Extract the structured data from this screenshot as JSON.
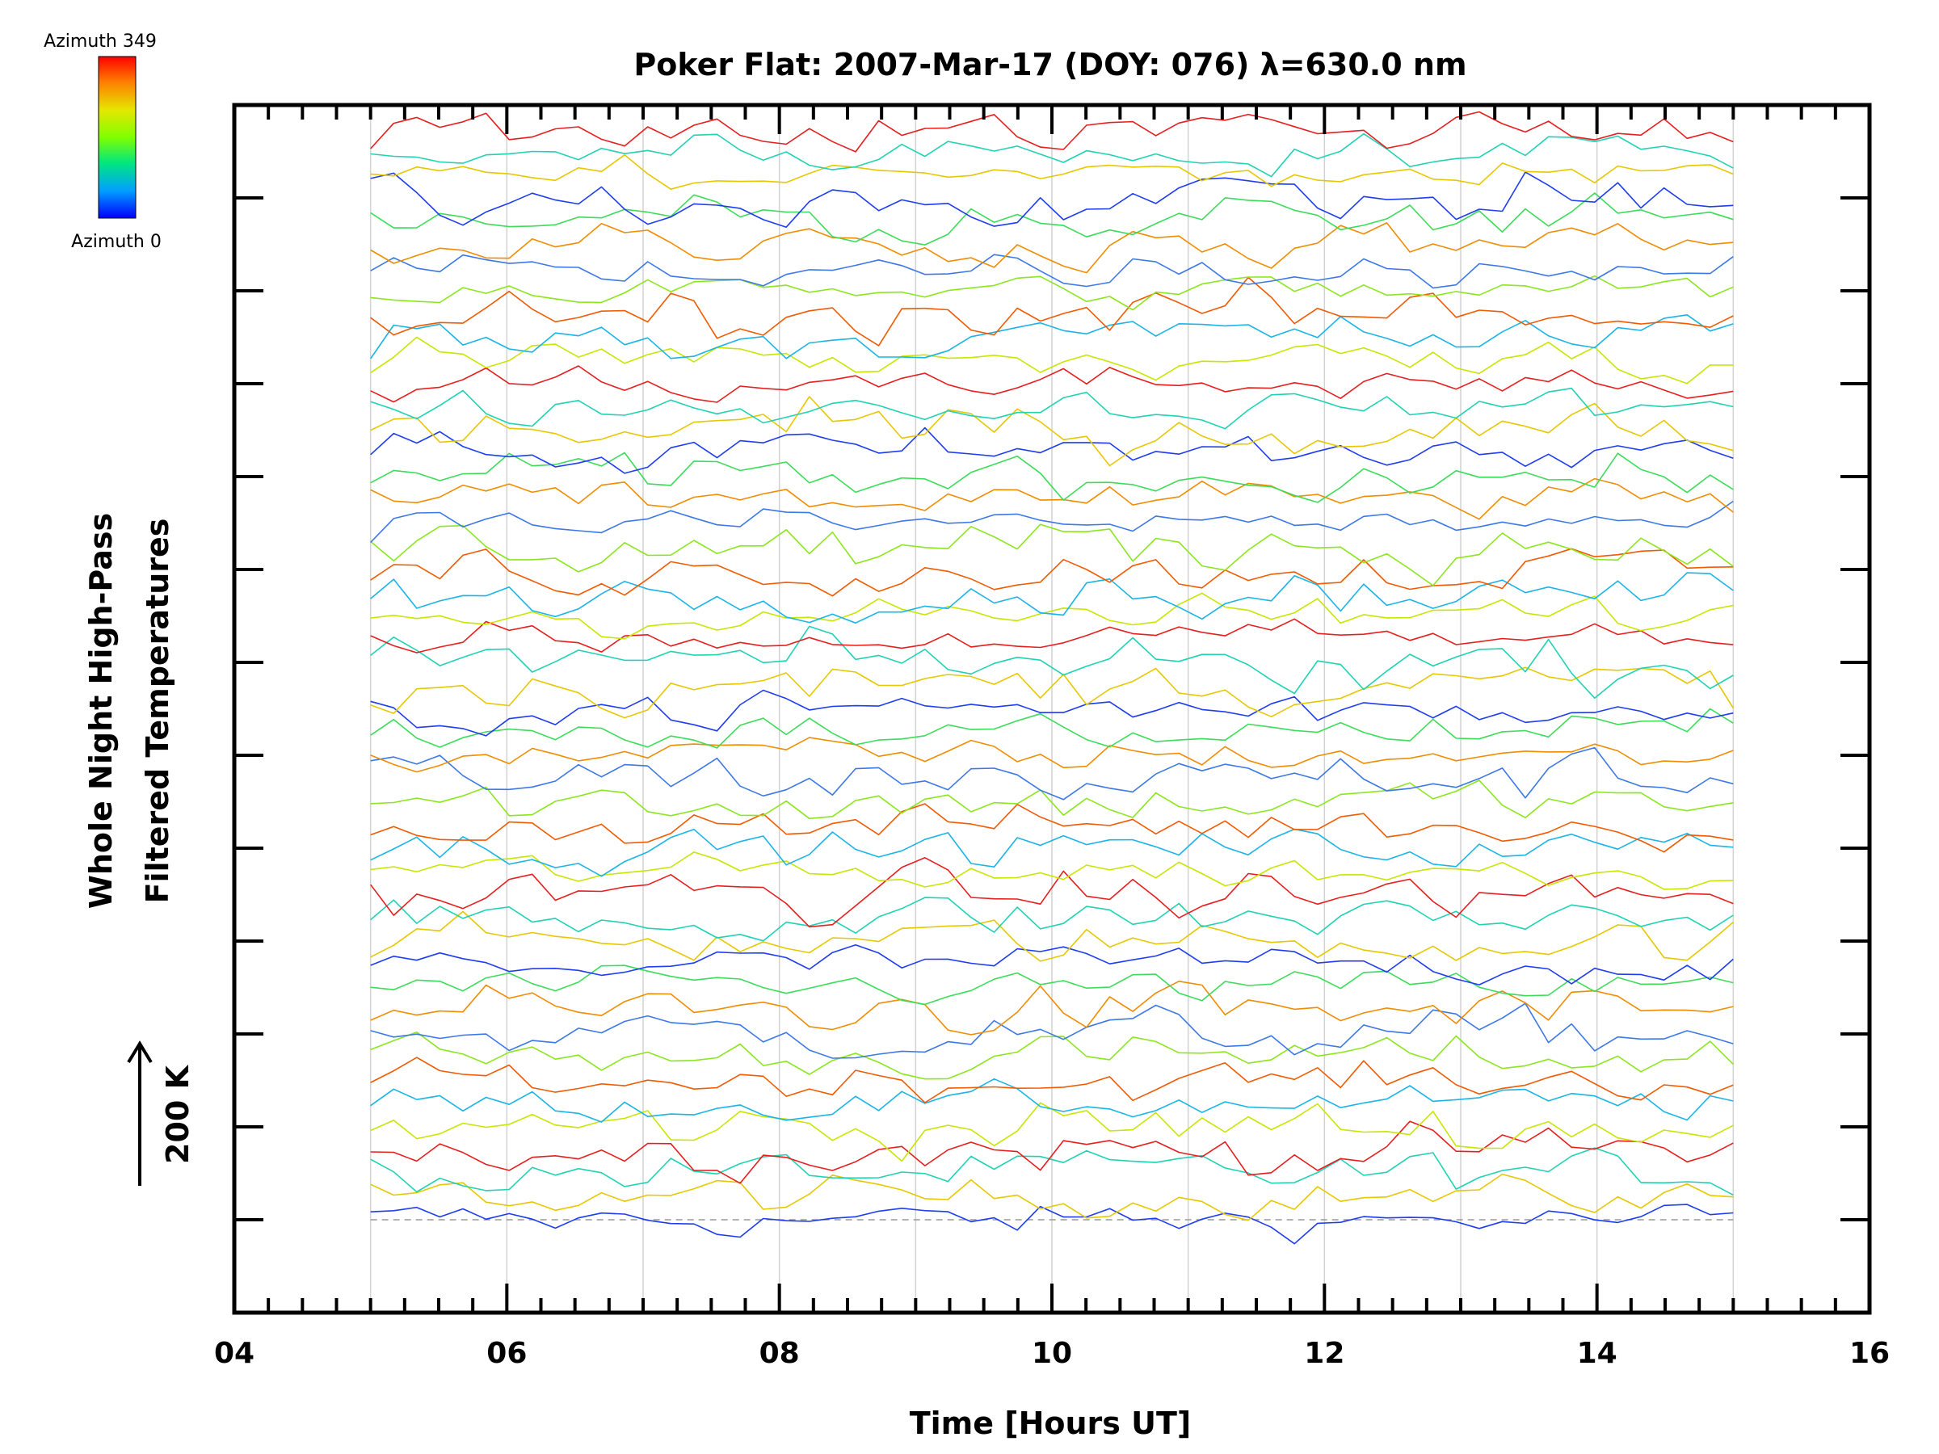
{
  "chart_data": {
    "type": "line",
    "title": "Poker Flat: 2007-Mar-17 (DOY: 076) λ=630.0 nm",
    "xlabel": "Time [Hours UT]",
    "ylabel_line1": "Whole Night High-Pass",
    "ylabel_line2": "Filtered Temperatures",
    "xlim": [
      4,
      16
    ],
    "x_ticks": [
      "04",
      "06",
      "08",
      "10",
      "12",
      "14",
      "16"
    ],
    "x_minor_step": 0.25,
    "x_range_data": [
      5.0,
      15.0
    ],
    "y_units": "offset steps",
    "ylim": [
      -1.0,
      12.0
    ],
    "y_tick_count": 14,
    "scale_bar_label": "200 K",
    "scale_bar_value_K": 200,
    "baseline_y": 0,
    "colorbar": {
      "top_label": "Azimuth 349",
      "bottom_label": "Azimuth 0",
      "placement": "top-left",
      "colors": [
        "#ff0000",
        "#ff8000",
        "#e6e600",
        "#80ff00",
        "#00e680",
        "#00a0ff",
        "#0000ff"
      ]
    },
    "vertical_grid_hours": [
      5,
      6,
      7,
      8,
      9,
      10,
      11,
      12,
      13,
      14,
      15
    ],
    "series_count": 48,
    "series_offset_step": 0.25,
    "points_per_series": 60,
    "palette": [
      "#1e3cf0",
      "#3c78e6",
      "#1ab4e6",
      "#20d2b4",
      "#3cdc5a",
      "#8ce61e",
      "#c8e600",
      "#e6c800",
      "#f08c00",
      "#f05a00",
      "#e61e1e"
    ]
  }
}
